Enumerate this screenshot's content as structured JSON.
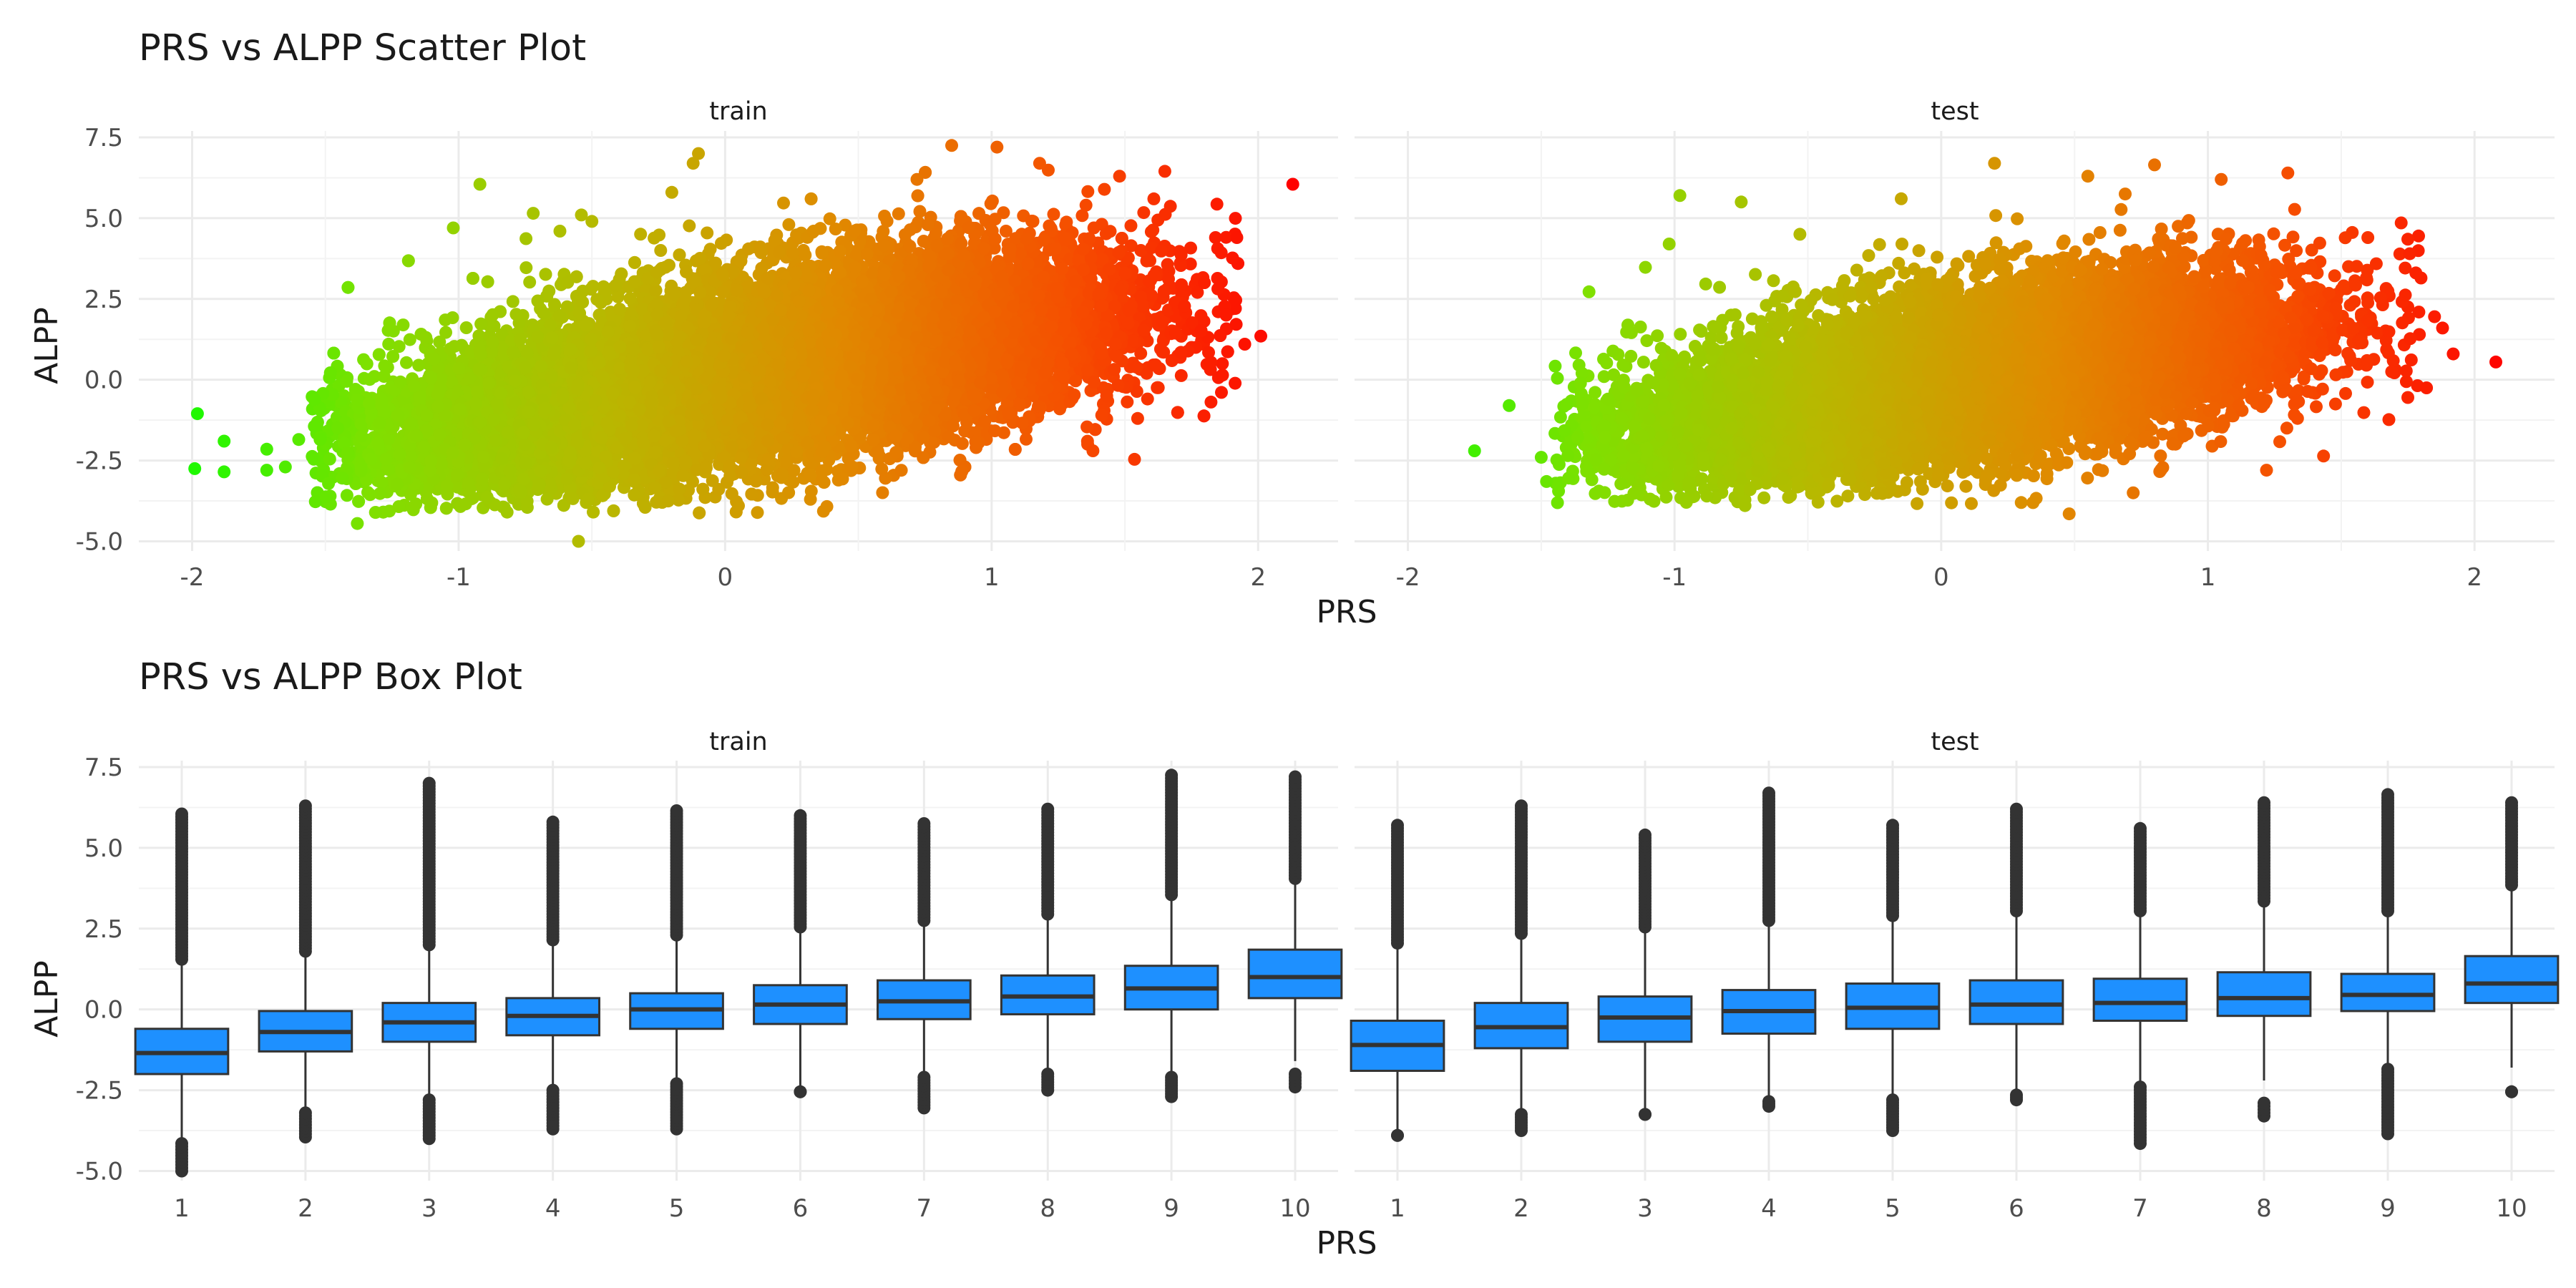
{
  "colors": {
    "grid_major": "#ebebeb",
    "grid_minor": "#f3f3f3",
    "box_fill": "#1e90ff",
    "box_line": "#333333",
    "outlier": "#333333",
    "scatter_gradient": [
      "#00ff00",
      "#7fe000",
      "#b8b800",
      "#e08a00",
      "#f55000",
      "#ff0000"
    ]
  },
  "chart_data": [
    {
      "type": "scatter",
      "title": "PRS vs ALPP Scatter Plot",
      "xlabel": "PRS",
      "ylabel": "ALPP",
      "xlim": [
        -2.2,
        2.3
      ],
      "ylim": [
        -5.3,
        7.7
      ],
      "xticks": [
        -2,
        -1,
        0,
        1,
        2
      ],
      "xtick_labels": [
        "-2",
        "-1",
        "0",
        "1",
        "2"
      ],
      "yticks": [
        7.5,
        5.0,
        2.5,
        0.0,
        -2.5,
        -5.0
      ],
      "ytick_labels": [
        "7.5",
        "5.0",
        "2.5",
        "0.0",
        "-2.5",
        "-5.0"
      ],
      "color_by": "PRS",
      "grid": true,
      "panels": [
        {
          "name": "train",
          "points": [
            [
              -1.98,
              -1.05
            ],
            [
              -1.99,
              -2.75
            ],
            [
              -1.88,
              -2.85
            ],
            [
              -1.88,
              -1.9
            ],
            [
              -1.72,
              -2.15
            ],
            [
              -1.72,
              -2.8
            ],
            [
              -1.65,
              -2.7
            ],
            [
              -1.6,
              -1.85
            ],
            [
              -1.52,
              -1.85
            ],
            [
              -1.42,
              -0.05
            ],
            [
              -1.38,
              -4.45
            ],
            [
              -1.15,
              0.45
            ],
            [
              -1.05,
              1.85
            ],
            [
              -1.02,
              4.7
            ],
            [
              -0.92,
              6.05
            ],
            [
              -0.72,
              5.15
            ],
            [
              -0.62,
              4.6
            ],
            [
              -0.55,
              -5.0
            ],
            [
              -0.5,
              4.9
            ],
            [
              -0.3,
              -3.95
            ],
            [
              -0.2,
              5.8
            ],
            [
              -0.12,
              6.7
            ],
            [
              -0.1,
              7.0
            ],
            [
              0.05,
              -3.9
            ],
            [
              0.32,
              -3.7
            ],
            [
              0.72,
              6.2
            ],
            [
              0.85,
              7.25
            ],
            [
              1.02,
              7.2
            ],
            [
              1.18,
              6.7
            ],
            [
              1.38,
              -2.2
            ],
            [
              1.48,
              6.3
            ],
            [
              1.65,
              6.45
            ],
            [
              1.92,
              4.4
            ],
            [
              1.88,
              2.0
            ],
            [
              1.95,
              1.1
            ],
            [
              2.01,
              1.35
            ],
            [
              2.13,
              6.05
            ]
          ],
          "clouds": [
            {
              "mean_x": 0.0,
              "mean_y": 0.0,
              "sd_x": 0.6,
              "sd_y": 1.45,
              "slope": 1.25,
              "count": 9000,
              "x_range": [
                -1.55,
                1.95
              ],
              "y_range": [
                -4.2,
                6.4
              ]
            },
            {
              "mean_x": 0.55,
              "mean_y": 1.2,
              "sd_x": 0.55,
              "sd_y": 1.4,
              "slope": 1.0,
              "count": 6000,
              "x_range": [
                -1.2,
                1.95
              ],
              "y_range": [
                -3.5,
                6.6
              ]
            },
            {
              "mean_x": -0.6,
              "mean_y": -1.0,
              "sd_x": 0.42,
              "sd_y": 0.95,
              "slope": 1.1,
              "count": 3500,
              "x_range": [
                -1.55,
                0.6
              ],
              "y_range": [
                -4.0,
                4.8
              ]
            }
          ]
        },
        {
          "name": "test",
          "points": [
            [
              -1.75,
              -2.2
            ],
            [
              -1.62,
              -0.8
            ],
            [
              -1.5,
              -2.4
            ],
            [
              -1.48,
              -3.15
            ],
            [
              -1.4,
              -2.35
            ],
            [
              -1.25,
              -0.6
            ],
            [
              -1.02,
              4.2
            ],
            [
              -0.98,
              5.7
            ],
            [
              -0.9,
              1.5
            ],
            [
              -0.75,
              5.5
            ],
            [
              -0.35,
              -3.6
            ],
            [
              -0.15,
              5.6
            ],
            [
              0.2,
              6.7
            ],
            [
              0.3,
              -3.8
            ],
            [
              0.48,
              -4.15
            ],
            [
              0.55,
              6.3
            ],
            [
              0.72,
              -3.5
            ],
            [
              0.8,
              6.65
            ],
            [
              1.05,
              6.2
            ],
            [
              1.3,
              6.4
            ],
            [
              1.22,
              -2.8
            ],
            [
              1.6,
              4.4
            ],
            [
              1.75,
              4.35
            ],
            [
              1.85,
              1.95
            ],
            [
              1.88,
              1.6
            ],
            [
              1.92,
              0.8
            ],
            [
              1.82,
              -0.25
            ],
            [
              1.75,
              -0.55
            ],
            [
              2.08,
              0.55
            ]
          ],
          "clouds": [
            {
              "mean_x": 0.0,
              "mean_y": 0.0,
              "sd_x": 0.56,
              "sd_y": 1.35,
              "slope": 1.2,
              "count": 5200,
              "x_range": [
                -1.45,
                1.8
              ],
              "y_range": [
                -3.9,
                6.2
              ]
            },
            {
              "mean_x": 0.5,
              "mean_y": 0.9,
              "sd_x": 0.52,
              "sd_y": 1.3,
              "slope": 1.0,
              "count": 3200,
              "x_range": [
                -1.0,
                1.8
              ],
              "y_range": [
                -3.3,
                6.3
              ]
            },
            {
              "mean_x": -0.6,
              "mean_y": -1.1,
              "sd_x": 0.4,
              "sd_y": 0.9,
              "slope": 1.1,
              "count": 2000,
              "x_range": [
                -1.45,
                0.5
              ],
              "y_range": [
                -3.9,
                4.2
              ]
            }
          ]
        }
      ]
    },
    {
      "type": "box",
      "title": "PRS vs ALPP Box Plot",
      "xlabel": "PRS",
      "ylabel": "ALPP",
      "categories": [
        "1",
        "2",
        "3",
        "4",
        "5",
        "6",
        "7",
        "8",
        "9",
        "10"
      ],
      "ylim": [
        -5.3,
        7.7
      ],
      "yticks": [
        7.5,
        5.0,
        2.5,
        0.0,
        -2.5,
        -5.0
      ],
      "ytick_labels": [
        "7.5",
        "5.0",
        "2.5",
        "0.0",
        "-2.5",
        "-5.0"
      ],
      "grid": true,
      "panels": [
        {
          "name": "train",
          "boxes": [
            {
              "q1": -2.0,
              "median": -1.35,
              "q3": -0.6,
              "whisker_low": -4.0,
              "whisker_high": 1.5,
              "outliers_high": [
                1.55,
                6.05
              ],
              "outliers_low": [
                -5.0,
                -4.15
              ]
            },
            {
              "q1": -1.3,
              "median": -0.7,
              "q3": -0.05,
              "whisker_low": -3.1,
              "whisker_high": 1.75,
              "outliers_high": [
                1.8,
                6.3
              ],
              "outliers_low": [
                -3.95,
                -3.2
              ]
            },
            {
              "q1": -1.0,
              "median": -0.4,
              "q3": 0.2,
              "whisker_low": -2.7,
              "whisker_high": 1.95,
              "outliers_high": [
                2.0,
                7.0
              ],
              "outliers_low": [
                -4.0,
                -2.8
              ]
            },
            {
              "q1": -0.8,
              "median": -0.2,
              "q3": 0.35,
              "whisker_low": -2.45,
              "whisker_high": 2.1,
              "outliers_high": [
                2.15,
                5.8
              ],
              "outliers_low": [
                -3.7,
                -2.5
              ]
            },
            {
              "q1": -0.6,
              "median": 0.0,
              "q3": 0.5,
              "whisker_low": -2.2,
              "whisker_high": 2.25,
              "outliers_high": [
                2.3,
                6.15
              ],
              "outliers_low": [
                -3.7,
                -2.3
              ]
            },
            {
              "q1": -0.45,
              "median": 0.15,
              "q3": 0.75,
              "whisker_low": -2.5,
              "whisker_high": 2.5,
              "outliers_high": [
                2.55,
                6.0
              ],
              "outliers_low": [
                -2.55,
                -2.55
              ]
            },
            {
              "q1": -0.3,
              "median": 0.25,
              "q3": 0.9,
              "whisker_low": -2.0,
              "whisker_high": 2.7,
              "outliers_high": [
                2.75,
                5.75
              ],
              "outliers_low": [
                -3.05,
                -2.1
              ]
            },
            {
              "q1": -0.15,
              "median": 0.4,
              "q3": 1.05,
              "whisker_low": -1.9,
              "whisker_high": 2.9,
              "outliers_high": [
                2.95,
                6.2
              ],
              "outliers_low": [
                -2.5,
                -2.0
              ]
            },
            {
              "q1": 0.0,
              "median": 0.65,
              "q3": 1.35,
              "whisker_low": -2.0,
              "whisker_high": 3.5,
              "outliers_high": [
                3.55,
                7.25
              ],
              "outliers_low": [
                -2.7,
                -2.1
              ]
            },
            {
              "q1": 0.35,
              "median": 1.0,
              "q3": 1.85,
              "whisker_low": -1.6,
              "whisker_high": 4.0,
              "outliers_high": [
                4.05,
                7.2
              ],
              "outliers_low": [
                -2.4,
                -2.0
              ]
            }
          ]
        },
        {
          "name": "test",
          "boxes": [
            {
              "q1": -1.9,
              "median": -1.1,
              "q3": -0.35,
              "whisker_low": -3.9,
              "whisker_high": 2.0,
              "outliers_high": [
                2.05,
                5.7
              ],
              "outliers_low": [
                -3.9,
                -3.9
              ]
            },
            {
              "q1": -1.2,
              "median": -0.55,
              "q3": 0.2,
              "whisker_low": -3.2,
              "whisker_high": 2.3,
              "outliers_high": [
                2.35,
                6.3
              ],
              "outliers_low": [
                -3.75,
                -3.25
              ]
            },
            {
              "q1": -1.0,
              "median": -0.25,
              "q3": 0.4,
              "whisker_low": -3.2,
              "whisker_high": 2.5,
              "outliers_high": [
                2.55,
                5.4
              ],
              "outliers_low": [
                -3.25,
                -3.25
              ]
            },
            {
              "q1": -0.75,
              "median": -0.05,
              "q3": 0.6,
              "whisker_low": -2.8,
              "whisker_high": 2.7,
              "outliers_high": [
                2.75,
                6.7
              ],
              "outliers_low": [
                -3.0,
                -2.85
              ]
            },
            {
              "q1": -0.6,
              "median": 0.05,
              "q3": 0.8,
              "whisker_low": -2.7,
              "whisker_high": 2.85,
              "outliers_high": [
                2.9,
                5.7
              ],
              "outliers_low": [
                -3.75,
                -2.8
              ]
            },
            {
              "q1": -0.45,
              "median": 0.15,
              "q3": 0.9,
              "whisker_low": -2.6,
              "whisker_high": 3.0,
              "outliers_high": [
                3.05,
                6.2
              ],
              "outliers_low": [
                -2.8,
                -2.65
              ]
            },
            {
              "q1": -0.35,
              "median": 0.2,
              "q3": 0.95,
              "whisker_low": -2.3,
              "whisker_high": 3.0,
              "outliers_high": [
                3.05,
                5.6
              ],
              "outliers_low": [
                -4.15,
                -2.4
              ]
            },
            {
              "q1": -0.2,
              "median": 0.35,
              "q3": 1.15,
              "whisker_low": -2.2,
              "whisker_high": 3.3,
              "outliers_high": [
                3.35,
                6.4
              ],
              "outliers_low": [
                -3.3,
                -2.9
              ]
            },
            {
              "q1": -0.05,
              "median": 0.45,
              "q3": 1.1,
              "whisker_low": -1.8,
              "whisker_high": 3.0,
              "outliers_high": [
                3.05,
                6.65
              ],
              "outliers_low": [
                -3.85,
                -1.85
              ]
            },
            {
              "q1": 0.2,
              "median": 0.8,
              "q3": 1.65,
              "whisker_low": -1.8,
              "whisker_high": 3.8,
              "outliers_high": [
                3.85,
                6.4
              ],
              "outliers_low": [
                -2.55,
                -2.55
              ]
            }
          ]
        }
      ]
    }
  ]
}
